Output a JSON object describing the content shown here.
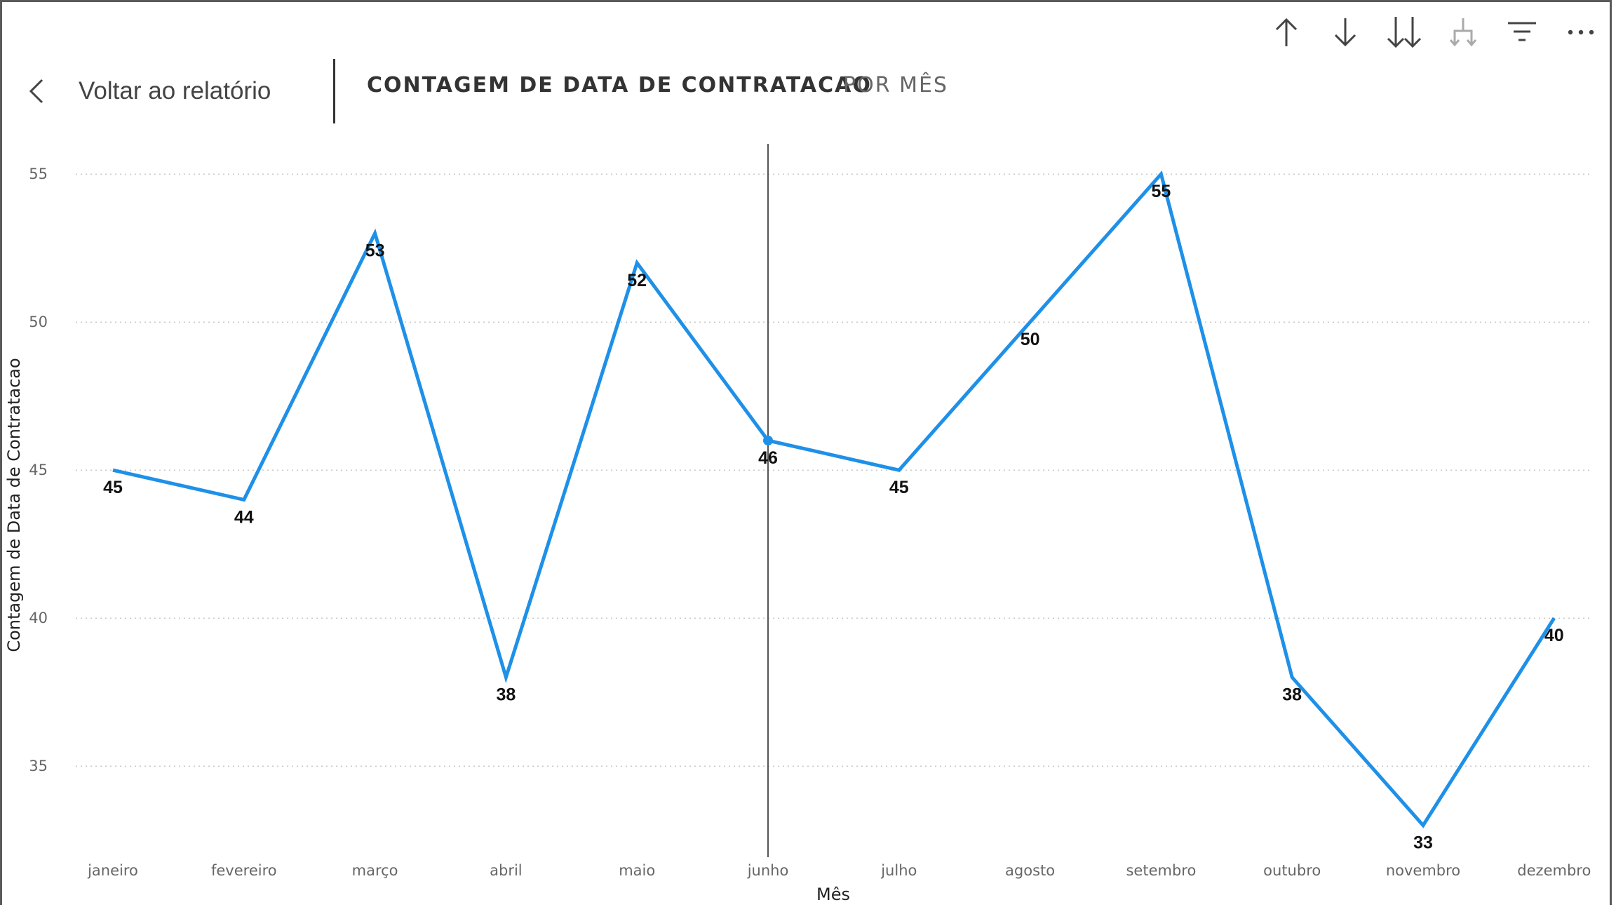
{
  "toolbar": {
    "icons": [
      "arrow-up-icon",
      "arrow-down-icon",
      "double-arrow-down-icon",
      "expand-hierarchy-icon",
      "filter-icon",
      "more-options-icon"
    ]
  },
  "header": {
    "back_label": "Voltar ao relatório",
    "title": "CONTAGEM DE DATA DE CONTRATACAO",
    "subtitle": "POR MÊS"
  },
  "colors": {
    "line": "#1E90E8",
    "gridline": "#c8c8c8",
    "hover_line": "#555555"
  },
  "chart_data": {
    "type": "line",
    "categories": [
      "janeiro",
      "fevereiro",
      "março",
      "abril",
      "maio",
      "junho",
      "julho",
      "agosto",
      "setembro",
      "outubro",
      "novembro",
      "dezembro"
    ],
    "values": [
      45,
      44,
      53,
      38,
      52,
      46,
      45,
      50,
      55,
      38,
      33,
      40
    ],
    "xlabel": "Mês",
    "ylabel": "Contagem de Data de Contratacao",
    "yticks": [
      35,
      40,
      45,
      50,
      55
    ],
    "ylim": [
      33,
      56
    ],
    "grid": true,
    "highlighted_category": "junho",
    "data_labels": true
  }
}
